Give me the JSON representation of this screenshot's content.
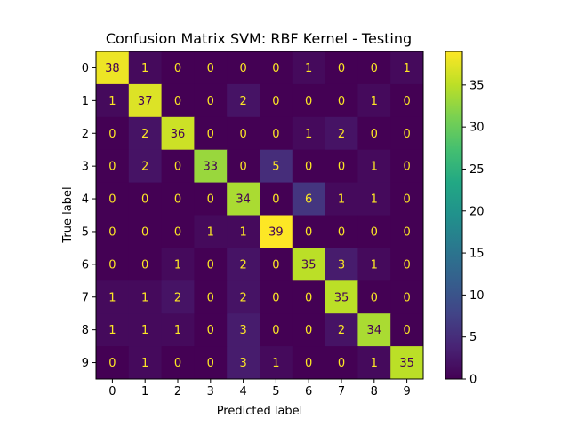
{
  "chart_data": {
    "type": "heatmap",
    "title": "Confusion Matrix SVM: RBF Kernel - Testing",
    "xlabel": "Predicted label",
    "ylabel": "True label",
    "x_tick_labels": [
      "0",
      "1",
      "2",
      "3",
      "4",
      "5",
      "6",
      "7",
      "8",
      "9"
    ],
    "y_tick_labels": [
      "0",
      "1",
      "2",
      "3",
      "4",
      "5",
      "6",
      "7",
      "8",
      "9"
    ],
    "matrix": [
      [
        38,
        1,
        0,
        0,
        0,
        0,
        1,
        0,
        0,
        1
      ],
      [
        1,
        37,
        0,
        0,
        2,
        0,
        0,
        0,
        1,
        0
      ],
      [
        0,
        2,
        36,
        0,
        0,
        0,
        1,
        2,
        0,
        0
      ],
      [
        0,
        2,
        0,
        33,
        0,
        5,
        0,
        0,
        1,
        0
      ],
      [
        0,
        0,
        0,
        0,
        34,
        0,
        6,
        1,
        1,
        0
      ],
      [
        0,
        0,
        0,
        1,
        1,
        39,
        0,
        0,
        0,
        0
      ],
      [
        0,
        0,
        1,
        0,
        2,
        0,
        35,
        3,
        1,
        0
      ],
      [
        1,
        1,
        2,
        0,
        2,
        0,
        0,
        35,
        0,
        0
      ],
      [
        1,
        1,
        1,
        0,
        3,
        0,
        0,
        2,
        34,
        0
      ],
      [
        0,
        1,
        0,
        0,
        3,
        1,
        0,
        0,
        1,
        35
      ]
    ],
    "colormap": "viridis",
    "color_range": [
      0,
      39
    ],
    "colorbar_ticks": [
      0,
      5,
      10,
      15,
      20,
      25,
      30,
      35
    ],
    "colorbar_tick_labels": [
      "0",
      "5",
      "10",
      "15",
      "20",
      "25",
      "30",
      "35"
    ],
    "text_color_dark_cells": "#fde725",
    "text_color_light_cells": "#440154"
  }
}
